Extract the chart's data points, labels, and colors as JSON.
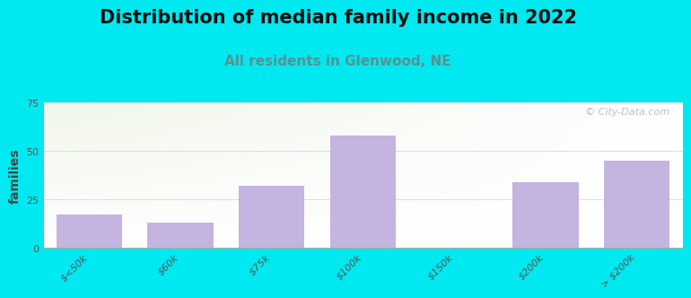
{
  "title": "Distribution of median family income in 2022",
  "subtitle": "All residents in Glenwood, NE",
  "ylabel": "families",
  "categories": [
    "$<50k",
    "$60k",
    "$75k",
    "$100k",
    "$150k",
    "$200k",
    "> $200k"
  ],
  "values": [
    17,
    13,
    32,
    58,
    0,
    34,
    45
  ],
  "bar_color": "#c5b3e0",
  "ylim": [
    0,
    75
  ],
  "yticks": [
    0,
    25,
    50,
    75
  ],
  "background_color": "#00e8f0",
  "title_fontsize": 15,
  "subtitle_fontsize": 11,
  "subtitle_color": "#5c9090",
  "ylabel_fontsize": 10,
  "tick_fontsize": 8,
  "watermark": "© City-Data.com",
  "grid_color": "#dddddd",
  "bar_width": 0.72
}
